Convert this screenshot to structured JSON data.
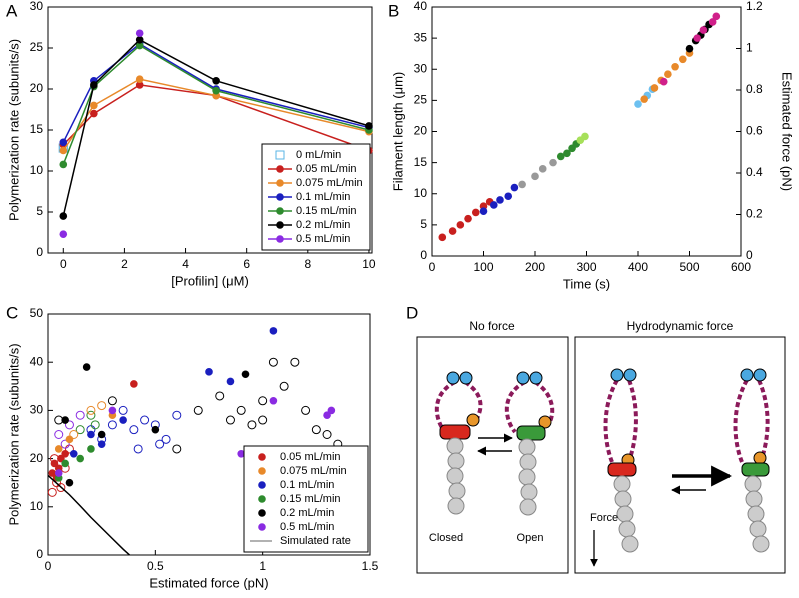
{
  "panel_labels": [
    "A",
    "B",
    "C",
    "D"
  ],
  "chart_data": [
    {
      "type": "line",
      "x_label": "[Profilin] (μM)",
      "y_label": "Polymerization rate (subunits/s)",
      "x": [
        0,
        1,
        2.5,
        5,
        10
      ],
      "xlim": [
        -0.5,
        10.1
      ],
      "xticks": [
        0,
        2,
        4,
        6,
        8,
        10
      ],
      "ylim": [
        0,
        30
      ],
      "yticks": [
        0,
        5,
        10,
        15,
        20,
        25,
        30
      ],
      "legend": "lower right",
      "series": [
        {
          "name": "0 mL/min",
          "color": "#5ab4e6",
          "marker": "square-open",
          "line": false,
          "values": [
            12.8,
            null,
            null,
            null,
            null
          ]
        },
        {
          "name": "0.05 mL/min",
          "color": "#c8201e",
          "marker": "circle",
          "values": [
            13.2,
            17,
            20.5,
            19.2,
            12.5
          ]
        },
        {
          "name": "0.075 mL/min",
          "color": "#e8892a",
          "marker": "circle",
          "values": [
            12.5,
            18,
            21.2,
            19.2,
            14.8
          ]
        },
        {
          "name": "0.1 mL/min",
          "color": "#1a1fbf",
          "marker": "circle",
          "values": [
            13.5,
            21,
            25.5,
            20,
            15.3
          ]
        },
        {
          "name": "0.15 mL/min",
          "color": "#2e8b2e",
          "marker": "circle",
          "values": [
            10.8,
            20.3,
            25.3,
            19.8,
            15
          ]
        },
        {
          "name": "0.2 mL/min",
          "color": "#000000",
          "marker": "circle",
          "values": [
            4.5,
            20.5,
            26,
            21,
            15.5
          ]
        },
        {
          "name": "0.5 mL/min",
          "color": "#8a2be2",
          "marker": "circle",
          "line": false,
          "values": [
            2.3,
            null,
            26.8,
            null,
            null
          ]
        }
      ]
    },
    {
      "type": "scatter",
      "x_label": "Time (s)",
      "y_label": "Filament length (μm)",
      "y2_label": "Estimated force (pN)",
      "xlim": [
        0,
        600
      ],
      "xticks": [
        0,
        100,
        200,
        300,
        400,
        500,
        600
      ],
      "ylim": [
        0,
        40
      ],
      "yticks": [
        0,
        5,
        10,
        15,
        20,
        25,
        30,
        35,
        40
      ],
      "y2lim": [
        0,
        1.2
      ],
      "y2ticks": [
        0,
        0.2,
        0.4,
        0.6,
        0.8,
        1,
        1.2
      ],
      "series": [
        {
          "color": "#c8201e",
          "marker": "circle",
          "x": [
            20,
            40,
            55,
            70,
            85,
            100,
            112
          ],
          "values": [
            3,
            4,
            5,
            6,
            7,
            8,
            8.7
          ]
        },
        {
          "color": "#1a1fbf",
          "marker": "circle",
          "x": [
            100,
            120,
            132,
            148,
            160
          ],
          "values": [
            7.2,
            8.2,
            9,
            9.6,
            11
          ]
        },
        {
          "color": "#999999",
          "marker": "circle",
          "x": [
            175,
            200,
            215,
            235
          ],
          "values": [
            11.5,
            12.8,
            14,
            15
          ]
        },
        {
          "color": "#2e8b2e",
          "marker": "circle",
          "x": [
            250,
            262,
            272,
            280
          ],
          "values": [
            16,
            16.5,
            17.3,
            18
          ]
        },
        {
          "color": "#a6e05a",
          "marker": "circle",
          "x": [
            288,
            297
          ],
          "values": [
            18.6,
            19.2
          ]
        },
        {
          "color": "#6cc0f0",
          "marker": "circle",
          "x": [
            400,
            418,
            428
          ],
          "values": [
            24.4,
            25.8,
            26.8
          ]
        },
        {
          "color": "#e8892a",
          "marker": "circle",
          "x": [
            412,
            432,
            445,
            458,
            472,
            487,
            500
          ],
          "values": [
            25.2,
            27,
            28.2,
            29.2,
            30.4,
            31.6,
            32.6
          ]
        },
        {
          "color": "#000000",
          "marker": "circle",
          "x": [
            500,
            512,
            522,
            530,
            538
          ],
          "values": [
            33.3,
            34.6,
            35.5,
            36.4,
            37.2
          ]
        },
        {
          "color": "#d0208a",
          "marker": "circle",
          "x": [
            450,
            515,
            527,
            545,
            552
          ],
          "values": [
            28,
            35,
            36.3,
            37.6,
            38.5
          ]
        }
      ]
    },
    {
      "type": "scatter",
      "x_label": "Estimated force (pN)",
      "y_label": "Polymerization rate (subunits/s)",
      "xlim": [
        0,
        1.5
      ],
      "xticks": [
        0,
        0.5,
        1,
        1.5
      ],
      "ylim": [
        0,
        50
      ],
      "yticks": [
        0,
        10,
        20,
        30,
        40,
        50
      ],
      "legend": "lower right",
      "series": [
        {
          "color": "#000000",
          "marker": "circle-open",
          "x": [
            0.05,
            0.3,
            0.6,
            0.8,
            0.85,
            0.9,
            0.95,
            1.0,
            1.05,
            1.1,
            1.15,
            1.2,
            1.25,
            1.3,
            1.35,
            0.7,
            1.0
          ],
          "values": [
            28,
            32,
            22,
            33,
            28,
            30,
            27,
            32,
            40,
            35,
            40,
            30,
            26,
            25,
            23,
            30,
            28
          ]
        },
        {
          "color": "#1a1fbf",
          "marker": "circle-open",
          "x": [
            0.3,
            0.4,
            0.45,
            0.5,
            0.55,
            0.6,
            0.35,
            0.42,
            0.52,
            0.25,
            0.2
          ],
          "values": [
            27,
            26,
            28,
            27,
            24,
            29,
            30,
            22,
            23,
            24,
            26
          ]
        },
        {
          "color": "#c8201e",
          "marker": "circle-open",
          "x": [
            0.02,
            0.04,
            0.06,
            0.08,
            0.03,
            0.1
          ],
          "values": [
            13,
            15,
            14,
            18,
            20,
            22
          ]
        },
        {
          "color": "#8a2be2",
          "marker": "circle-open",
          "x": [
            0.05,
            0.1,
            0.15,
            0.08
          ],
          "values": [
            25,
            27,
            29,
            23
          ]
        },
        {
          "color": "#2e8b2e",
          "marker": "circle-open",
          "x": [
            0.15,
            0.2,
            0.22
          ],
          "values": [
            26,
            29,
            27
          ]
        },
        {
          "color": "#e8892a",
          "marker": "circle-open",
          "x": [
            0.2,
            0.25,
            0.12
          ],
          "values": [
            30,
            31,
            25
          ]
        },
        {
          "name": "0.05 mL/min",
          "color": "#c8201e",
          "marker": "circle",
          "x": [
            0.02,
            0.03,
            0.05,
            0.04,
            0.06,
            0.08,
            0.4
          ],
          "values": [
            17,
            19,
            18,
            16,
            20,
            21,
            35.5
          ]
        },
        {
          "name": "0.075 mL/min",
          "color": "#e8892a",
          "marker": "circle",
          "x": [
            0.05,
            0.1,
            0.3
          ],
          "values": [
            22,
            24,
            29
          ]
        },
        {
          "name": "0.1 mL/min",
          "color": "#1a1fbf",
          "marker": "circle",
          "x": [
            0.12,
            0.2,
            0.25,
            0.35,
            0.75,
            1.05,
            0.85
          ],
          "values": [
            21,
            25,
            23,
            28,
            38,
            46.5,
            36
          ]
        },
        {
          "name": "0.15 mL/min",
          "color": "#2e8b2e",
          "marker": "circle",
          "x": [
            0.05,
            0.08,
            0.15,
            0.2
          ],
          "values": [
            16,
            19,
            20,
            22
          ]
        },
        {
          "name": "0.2 mL/min",
          "color": "#000000",
          "marker": "circle",
          "x": [
            0.1,
            0.18,
            0.25,
            0.5,
            0.92,
            0.08
          ],
          "values": [
            15,
            39,
            25,
            26,
            37.5,
            28
          ]
        },
        {
          "name": "0.5 mL/min",
          "color": "#8a2be2",
          "marker": "circle",
          "x": [
            0.05,
            0.3,
            0.9,
            1.3,
            1.32,
            1.05
          ],
          "values": [
            17,
            30,
            21,
            29,
            30,
            32
          ]
        },
        {
          "name": "Simulated rate",
          "color": "#000000",
          "legend_color": "#999999",
          "marker": "none",
          "line": true,
          "x": [
            0,
            0.05,
            0.1,
            0.15,
            0.2,
            0.25,
            0.3,
            0.35,
            0.38
          ],
          "values": [
            16.5,
            14.5,
            12.5,
            10.2,
            7.8,
            5.6,
            3.4,
            1.2,
            0
          ]
        }
      ]
    }
  ],
  "diagram": {
    "panels": [
      {
        "title": "No force",
        "labels": [
          "Closed",
          "Open"
        ]
      },
      {
        "title": "Hydrodynamic force",
        "labels": [
          "Force"
        ]
      }
    ]
  }
}
